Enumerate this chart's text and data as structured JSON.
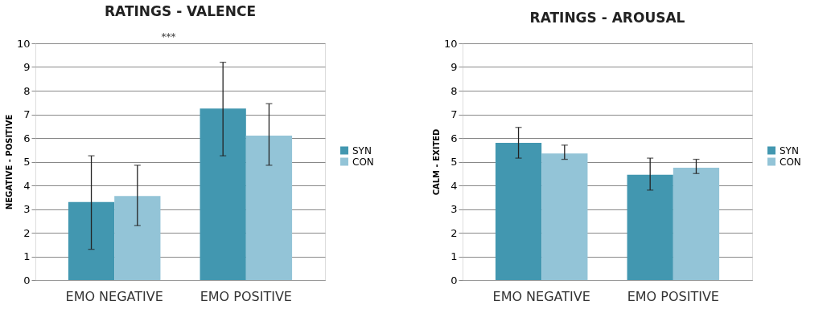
{
  "chart_data": [
    {
      "type": "bar",
      "title": "RATINGS - VALENCE",
      "ylabel": "NEGATIVE - POSITIVE",
      "categories": [
        "EMO NEGATIVE",
        "EMO POSITIVE"
      ],
      "series": [
        {
          "name": "SYN",
          "color": "#4297b0",
          "values": [
            3.3,
            7.25
          ],
          "errors": [
            [
              1.3,
              5.25
            ],
            [
              5.25,
              9.2
            ]
          ]
        },
        {
          "name": "CON",
          "color": "#93c4d7",
          "values": [
            3.55,
            6.1
          ],
          "errors": [
            [
              2.3,
              4.85
            ],
            [
              4.85,
              7.45
            ]
          ]
        }
      ],
      "ylim": [
        0,
        10
      ],
      "yticks": [
        0,
        1,
        2,
        3,
        4,
        5,
        6,
        7,
        8,
        9,
        10
      ],
      "grid": "y",
      "legend": "right",
      "annotations": [
        "***"
      ]
    },
    {
      "type": "bar",
      "title": "RATINGS - AROUSAL",
      "ylabel": "CALM - EXITED",
      "categories": [
        "EMO NEGATIVE",
        "EMO POSITIVE"
      ],
      "series": [
        {
          "name": "SYN",
          "color": "#4297b0",
          "values": [
            5.8,
            4.45
          ],
          "errors": [
            [
              5.15,
              6.45
            ],
            [
              3.8,
              5.15
            ]
          ]
        },
        {
          "name": "CON",
          "color": "#93c4d7",
          "values": [
            5.35,
            4.75
          ],
          "errors": [
            [
              5.1,
              5.7
            ],
            [
              4.5,
              5.1
            ]
          ]
        }
      ],
      "ylim": [
        0,
        10
      ],
      "yticks": [
        0,
        1,
        2,
        3,
        4,
        5,
        6,
        7,
        8,
        9,
        10
      ],
      "grid": "y",
      "legend": "right"
    }
  ]
}
